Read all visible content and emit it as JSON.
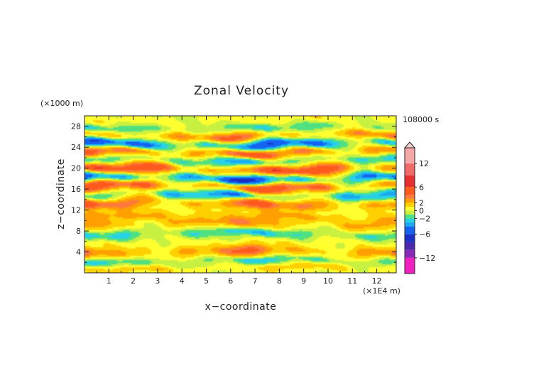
{
  "chart_data": {
    "type": "heatmap",
    "title": "Zonal Velocity",
    "xlabel": "x−coordinate",
    "ylabel": "z−coordinate",
    "x_units": "(×1E4 m)",
    "y_units": "(×1000 m)",
    "time_label": "108000 s",
    "xlim": [
      0,
      12.8
    ],
    "ylim": [
      0,
      30
    ],
    "x_ticks": [
      1,
      2,
      3,
      4,
      5,
      6,
      7,
      8,
      9,
      10,
      11,
      12
    ],
    "y_ticks": [
      4,
      8,
      12,
      16,
      20,
      24,
      28
    ],
    "colorbar": {
      "ticks": [
        12,
        6,
        2,
        0,
        -2,
        -6,
        -12
      ],
      "tick_labels": [
        "12",
        "6",
        "2",
        "0",
        "−2",
        "−6",
        "−12"
      ],
      "range": [
        -16,
        16
      ],
      "extend": "max",
      "colors": [
        {
          "from": 12,
          "to": 16,
          "color": "#f4a8a8"
        },
        {
          "from": 9,
          "to": 12,
          "color": "#f06a6a"
        },
        {
          "from": 6,
          "to": 9,
          "color": "#e83030"
        },
        {
          "from": 4,
          "to": 6,
          "color": "#ff5a1e"
        },
        {
          "from": 3,
          "to": 4,
          "color": "#ff7a3a"
        },
        {
          "from": 2,
          "to": 3,
          "color": "#ffa000"
        },
        {
          "from": 1,
          "to": 2,
          "color": "#ffd000"
        },
        {
          "from": 0,
          "to": 1,
          "color": "#ffff30"
        },
        {
          "from": -1,
          "to": 0,
          "color": "#c8f040"
        },
        {
          "from": -2,
          "to": -1,
          "color": "#50e080"
        },
        {
          "from": -3,
          "to": -2,
          "color": "#28d2e6"
        },
        {
          "from": -4,
          "to": -3,
          "color": "#1aaaf0"
        },
        {
          "from": -6,
          "to": -4,
          "color": "#1463f0"
        },
        {
          "from": -8,
          "to": -6,
          "color": "#1830c8"
        },
        {
          "from": -10,
          "to": -8,
          "color": "#4a28b0"
        },
        {
          "from": -12,
          "to": -10,
          "color": "#8a28b8"
        },
        {
          "from": -16,
          "to": -12,
          "color": "#f020c0"
        }
      ]
    },
    "bands": [
      {
        "z": 1.0,
        "u": 1.5,
        "thickness": 0.9,
        "phase": 0.0
      },
      {
        "z": 2.2,
        "u": -2.3,
        "thickness": 0.8,
        "phase": 1.1
      },
      {
        "z": 4.0,
        "u": 3.2,
        "thickness": 1.1,
        "phase": 2.0
      },
      {
        "z": 5.8,
        "u": 0.5,
        "thickness": 1.0,
        "phase": 0.6
      },
      {
        "z": 7.5,
        "u": -2.5,
        "thickness": 0.9,
        "phase": 1.7
      },
      {
        "z": 9.5,
        "u": 2.5,
        "thickness": 1.2,
        "phase": 2.4
      },
      {
        "z": 11.0,
        "u": 1.8,
        "thickness": 0.9,
        "phase": 0.3
      },
      {
        "z": 13.3,
        "u": 4.0,
        "thickness": 1.2,
        "phase": 1.3
      },
      {
        "z": 14.8,
        "u": -4.0,
        "thickness": 1.0,
        "phase": 2.8
      },
      {
        "z": 16.6,
        "u": 5.0,
        "thickness": 1.2,
        "phase": 0.9
      },
      {
        "z": 18.0,
        "u": -6.0,
        "thickness": 1.0,
        "phase": 1.9
      },
      {
        "z": 19.8,
        "u": 5.0,
        "thickness": 1.1,
        "phase": 0.2
      },
      {
        "z": 21.5,
        "u": -3.0,
        "thickness": 1.0,
        "phase": 2.2
      },
      {
        "z": 23.0,
        "u": 4.5,
        "thickness": 1.0,
        "phase": 1.4
      },
      {
        "z": 24.6,
        "u": -5.0,
        "thickness": 1.0,
        "phase": 0.7
      },
      {
        "z": 26.2,
        "u": 3.5,
        "thickness": 1.0,
        "phase": 2.6
      },
      {
        "z": 27.6,
        "u": -2.0,
        "thickness": 1.0,
        "phase": 1.0
      },
      {
        "z": 29.0,
        "u": 0.8,
        "thickness": 1.0,
        "phase": 0.4
      }
    ]
  }
}
